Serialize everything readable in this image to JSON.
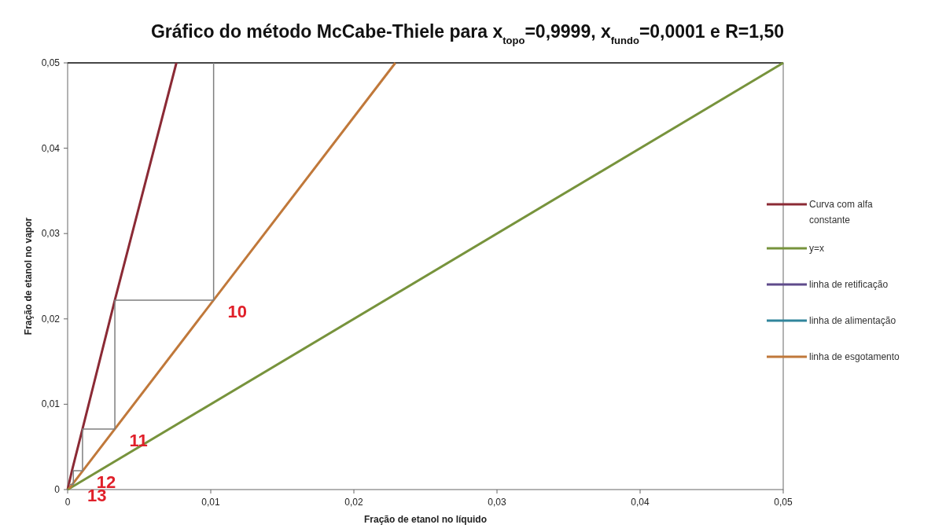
{
  "chart_data": {
    "type": "line",
    "title": "Gráfico do método McCabe-Thiele para x$_{topo}$=0,9999, x$_{fundo}$=0,0001 e R=1,50",
    "xlabel": "Fração de etanol no líquido",
    "ylabel": "Fração de etanol no vapor",
    "series": [
      {
        "name": "Curva com alfa constante",
        "color": "#8b2a35",
        "x": [
          0,
          0.0003,
          0.00104,
          0.0033,
          0.0076
        ],
        "values": [
          0,
          0.0022,
          0.0071,
          0.0222,
          0.05
        ]
      },
      {
        "name": "y=x",
        "color": "#77933c",
        "x": [
          0,
          0.05
        ],
        "values": [
          0,
          0.05
        ]
      },
      {
        "name": "linha de retificação",
        "color": "#5f4b8b"
      },
      {
        "name": "linha de alimentação",
        "color": "#31859c"
      },
      {
        "name": "linha de esgotamento",
        "color": "#c0783a",
        "x": [
          0.0001,
          0.0229
        ],
        "values": [
          0.0001,
          0.05
        ]
      },
      {
        "color": "#7f7f7f",
        "x": [
          0.0102,
          0.0102,
          0.0033,
          0.0033,
          0.00104,
          0.00104,
          0.0004,
          0.0004,
          0.0001
        ],
        "values": [
          0.05,
          0.0222,
          0.0222,
          0.0071,
          0.0071,
          0.0022,
          0.0022,
          0.0006,
          0.0006
        ]
      }
    ],
    "xlim": [
      0,
      0.05
    ],
    "ylim": [
      0,
      0.05
    ],
    "xticks": [
      0,
      {
        "value": 0.01,
        "label": "0,01"
      },
      {
        "value": 0.02,
        "label": "0,02"
      },
      {
        "value": 0.03,
        "label": "0,03"
      },
      {
        "value": 0.04,
        "label": "0,04"
      },
      {
        "value": 0.05,
        "label": "0,05"
      }
    ],
    "yticks": [
      0,
      {
        "value": 0.01,
        "label": "0,01"
      },
      {
        "value": 0.02,
        "label": "0,02"
      },
      {
        "value": 0.03,
        "label": "0,03"
      },
      {
        "value": 0.04,
        "label": "0,04"
      },
      {
        "value": 0.05,
        "label": "0,05"
      }
    ],
    "annotations": [
      "10",
      "11",
      "12",
      "13"
    ],
    "grid": false,
    "legend": "right",
    "marker": "none",
    "line_style": "solid"
  }
}
